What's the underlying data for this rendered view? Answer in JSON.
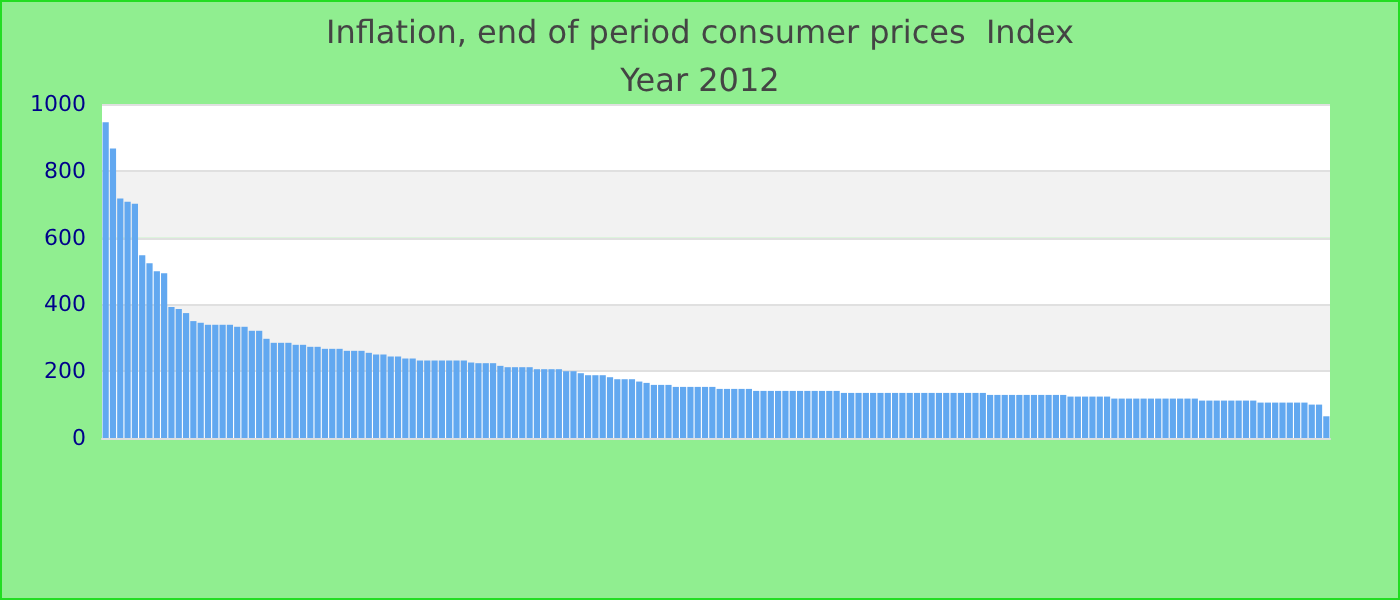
{
  "chart_data": {
    "type": "bar",
    "title": "Inflation, end of period consumer prices  Index",
    "subtitle": "Year 2012",
    "categories": [
      null,
      null,
      null,
      null,
      null,
      null,
      null,
      null,
      null,
      null,
      null,
      null,
      null,
      null,
      null,
      null,
      null,
      null,
      null,
      null,
      null,
      null,
      null,
      null,
      null,
      null,
      null,
      null,
      null,
      null,
      null,
      null,
      null,
      null,
      null,
      null,
      null,
      null,
      null,
      null,
      null,
      null,
      null,
      null,
      null,
      null,
      null,
      null,
      null,
      null,
      null,
      null,
      null,
      null,
      null,
      null,
      null,
      null,
      null,
      null,
      null,
      null,
      null,
      null,
      null,
      null,
      null,
      null,
      null,
      null,
      null,
      null,
      null,
      null,
      null,
      null,
      null,
      null,
      null,
      null,
      null,
      null,
      null,
      null,
      null,
      null,
      null,
      null,
      null,
      null,
      null,
      null,
      null,
      null,
      null,
      null,
      null,
      null,
      null,
      null,
      null,
      null,
      null,
      null,
      null,
      null,
      null,
      null,
      null,
      null,
      null,
      null,
      null,
      null,
      null,
      null,
      null,
      null,
      null,
      null,
      null,
      null,
      null,
      null,
      null,
      null,
      null,
      null,
      null,
      null,
      null,
      null,
      null,
      null,
      null,
      null,
      null,
      null,
      null,
      null,
      null,
      null,
      null,
      null,
      null,
      null,
      null,
      null,
      null,
      null,
      null,
      null,
      null,
      null,
      null,
      null,
      null,
      null,
      null,
      null,
      null,
      null,
      null,
      null,
      null,
      null,
      null,
      null
    ],
    "values": [
      945,
      867,
      717,
      707,
      701,
      547,
      523,
      499,
      493,
      392,
      386,
      374,
      350,
      345,
      339,
      339,
      339,
      339,
      333,
      333,
      321,
      321,
      297,
      285,
      285,
      285,
      279,
      279,
      273,
      273,
      267,
      267,
      267,
      261,
      261,
      261,
      255,
      250,
      250,
      244,
      244,
      238,
      238,
      232,
      232,
      232,
      232,
      232,
      232,
      232,
      226,
      224,
      224,
      224,
      216,
      212,
      212,
      212,
      212,
      206,
      206,
      206,
      206,
      200,
      200,
      194,
      188,
      188,
      188,
      182,
      176,
      176,
      176,
      169,
      165,
      159,
      159,
      159,
      153,
      153,
      153,
      153,
      153,
      153,
      147,
      147,
      147,
      147,
      147,
      141,
      141,
      141,
      141,
      141,
      141,
      141,
      141,
      141,
      141,
      141,
      141,
      135,
      135,
      135,
      135,
      135,
      135,
      135,
      135,
      135,
      135,
      135,
      135,
      135,
      135,
      135,
      135,
      135,
      135,
      135,
      135,
      129,
      129,
      129,
      129,
      129,
      129,
      129,
      129,
      129,
      129,
      129,
      124,
      124,
      124,
      124,
      124,
      124,
      118,
      118,
      118,
      118,
      118,
      118,
      118,
      118,
      118,
      118,
      118,
      118,
      112,
      112,
      112,
      112,
      112,
      112,
      112,
      112,
      106,
      106,
      106,
      106,
      106,
      106,
      106,
      100,
      100,
      65
    ],
    "color": "#62a8f0",
    "ylim": [
      0,
      1000
    ],
    "yticks": [
      0,
      200,
      400,
      600,
      800,
      1000
    ],
    "grid": "y"
  }
}
